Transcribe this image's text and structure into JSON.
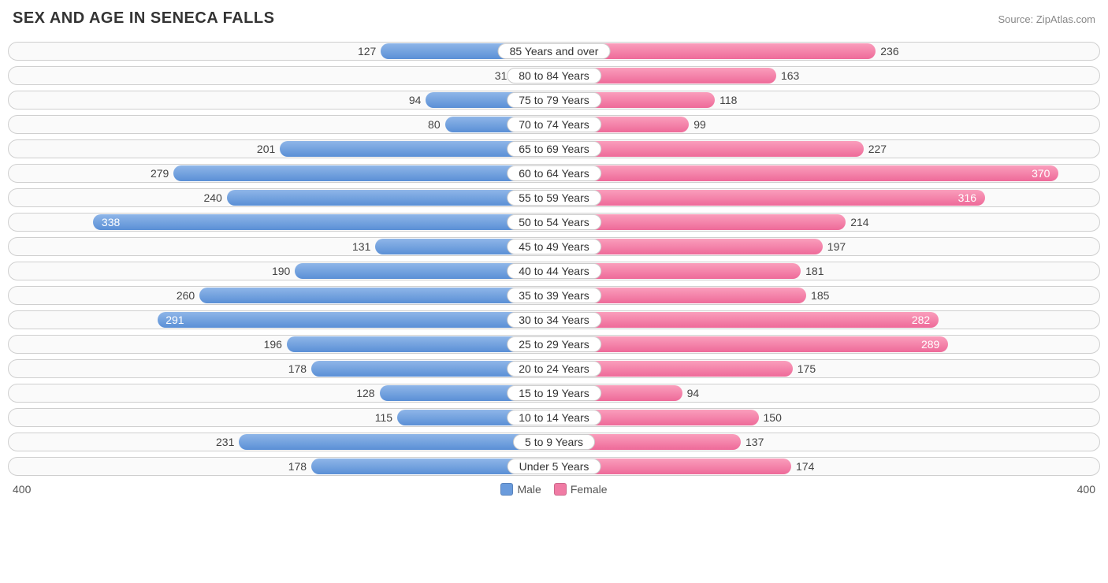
{
  "header": {
    "title": "SEX AND AGE IN SENECA FALLS",
    "source": "Source: ZipAtlas.com"
  },
  "chart": {
    "type": "population-pyramid",
    "axis_max": 400,
    "axis_label_left": "400",
    "axis_label_right": "400",
    "male_color_top": "#8fb6e8",
    "male_color_bottom": "#5a8fd6",
    "female_color_top": "#fa9ebc",
    "female_color_bottom": "#ee6a99",
    "row_border_color": "#cfcfcf",
    "row_bg_color": "#fafafa",
    "inside_threshold": 280,
    "rows": [
      {
        "label": "85 Years and over",
        "male": 127,
        "female": 236
      },
      {
        "label": "80 to 84 Years",
        "male": 31,
        "female": 163
      },
      {
        "label": "75 to 79 Years",
        "male": 94,
        "female": 118
      },
      {
        "label": "70 to 74 Years",
        "male": 80,
        "female": 99
      },
      {
        "label": "65 to 69 Years",
        "male": 201,
        "female": 227
      },
      {
        "label": "60 to 64 Years",
        "male": 279,
        "female": 370
      },
      {
        "label": "55 to 59 Years",
        "male": 240,
        "female": 316
      },
      {
        "label": "50 to 54 Years",
        "male": 338,
        "female": 214
      },
      {
        "label": "45 to 49 Years",
        "male": 131,
        "female": 197
      },
      {
        "label": "40 to 44 Years",
        "male": 190,
        "female": 181
      },
      {
        "label": "35 to 39 Years",
        "male": 260,
        "female": 185
      },
      {
        "label": "30 to 34 Years",
        "male": 291,
        "female": 282
      },
      {
        "label": "25 to 29 Years",
        "male": 196,
        "female": 289
      },
      {
        "label": "20 to 24 Years",
        "male": 178,
        "female": 175
      },
      {
        "label": "15 to 19 Years",
        "male": 128,
        "female": 94
      },
      {
        "label": "10 to 14 Years",
        "male": 115,
        "female": 150
      },
      {
        "label": "5 to 9 Years",
        "male": 231,
        "female": 137
      },
      {
        "label": "Under 5 Years",
        "male": 178,
        "female": 174
      }
    ]
  },
  "legend": {
    "male_label": "Male",
    "female_label": "Female",
    "male_swatch": "#6a9bdc",
    "female_swatch": "#f07ba4"
  }
}
